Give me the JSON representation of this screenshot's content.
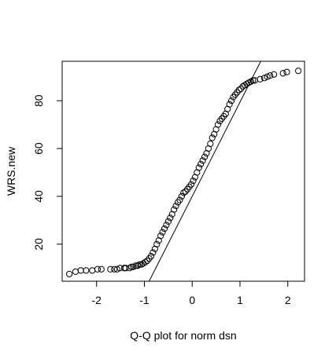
{
  "chart_data": {
    "type": "scatter",
    "title": "",
    "xlabel": "Q-Q plot for norm dsn",
    "ylabel": "WRS.new",
    "xlim": [
      -2.72,
      2.35
    ],
    "ylim": [
      4.5,
      96.5
    ],
    "x_ticks": [
      -2,
      -1,
      0,
      1,
      2
    ],
    "x_tick_labels": [
      "-2",
      "-1",
      "0",
      "1",
      "2"
    ],
    "y_ticks": [
      20,
      40,
      60,
      80
    ],
    "y_tick_labels": [
      "20",
      "40",
      "60",
      "80"
    ],
    "grid": false,
    "legend": "none",
    "reference_line": {
      "slope": 39.4,
      "intercept": 40.0
    },
    "series": [
      {
        "x": [
          -2.57,
          -2.44,
          -2.33,
          -2.22,
          -2.09,
          -1.98,
          -1.9,
          -1.71,
          -1.63,
          -1.57,
          -1.51,
          -1.42,
          -1.39,
          -1.31,
          -1.27,
          -1.23,
          -1.18,
          -1.14,
          -1.1,
          -1.06,
          -1.02,
          -0.98,
          -0.94,
          -0.9,
          -0.86,
          -0.82,
          -0.78,
          -0.74,
          -0.7,
          -0.66,
          -0.62,
          -0.58,
          -0.54,
          -0.5,
          -0.46,
          -0.42,
          -0.38,
          -0.34,
          -0.3,
          -0.26,
          -0.22,
          -0.18,
          -0.14,
          -0.1,
          -0.06,
          -0.02,
          0.02,
          0.06,
          0.1,
          0.14,
          0.18,
          0.22,
          0.26,
          0.3,
          0.34,
          0.38,
          0.42,
          0.46,
          0.5,
          0.54,
          0.58,
          0.62,
          0.66,
          0.7,
          0.74,
          0.78,
          0.82,
          0.86,
          0.9,
          0.94,
          0.98,
          1.02,
          1.06,
          1.1,
          1.14,
          1.18,
          1.23,
          1.27,
          1.31,
          1.42,
          1.51,
          1.57,
          1.63,
          1.71,
          1.9,
          1.98,
          2.22
        ],
        "y": [
          7.5,
          8.5,
          9.0,
          9.0,
          9.0,
          9.5,
          9.5,
          9.5,
          9.5,
          9.5,
          10.0,
          10.0,
          10.0,
          10.0,
          10.5,
          10.5,
          11.0,
          11.0,
          11.5,
          11.5,
          12.0,
          12.5,
          13.0,
          14.0,
          15.0,
          16.5,
          18.0,
          20.0,
          21.5,
          23.5,
          25.0,
          26.5,
          28.0,
          29.5,
          31.0,
          32.5,
          34.5,
          36.0,
          37.5,
          38.5,
          40.0,
          41.5,
          42.0,
          43.0,
          44.0,
          45.0,
          46.5,
          48.0,
          50.0,
          52.0,
          53.5,
          55.0,
          56.5,
          58.0,
          60.0,
          62.0,
          64.5,
          66.0,
          68.0,
          70.0,
          71.5,
          72.5,
          73.5,
          74.5,
          76.5,
          78.5,
          80.0,
          81.5,
          82.5,
          83.5,
          84.5,
          85.0,
          86.0,
          86.5,
          87.0,
          87.5,
          88.0,
          88.5,
          88.5,
          89.0,
          89.5,
          90.0,
          90.5,
          91.0,
          91.5,
          92.0,
          92.5
        ]
      }
    ]
  }
}
